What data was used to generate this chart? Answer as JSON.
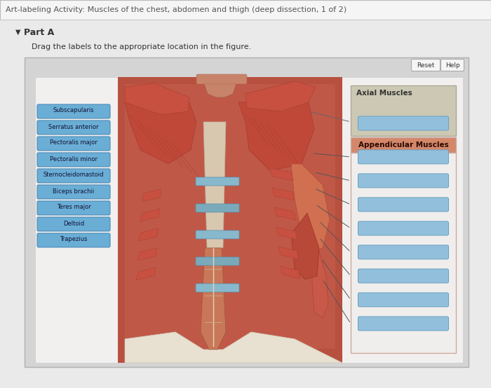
{
  "title": "Art-labeling Activity: Muscles of the chest, abdomen and thigh (deep dissection, 1 of 2)",
  "part_label": "Part A",
  "instruction": "Drag the labels to the appropriate location in the figure.",
  "page_bg": "#eaeaea",
  "title_bg": "#f5f5f5",
  "content_bg": "#d4d4d4",
  "inner_panel_bg": "#f0eeec",
  "left_labels": [
    "Subscapularis",
    "Serratus anterior",
    "Pectoralis major",
    "Pectoralis minor",
    "Sternocleidomastoid",
    "Biceps brachii",
    "Teres major",
    "Deltoid",
    "Trapezius"
  ],
  "label_btn_color": "#6aaed6",
  "label_btn_edge": "#4a8ab8",
  "label_text_color": "#111133",
  "axial_section_color": "#ccc8b4",
  "axial_section_edge": "#aaa898",
  "axial_title": "Axial Muscles",
  "appendicular_title": "Appendicular Muscles",
  "appendicular_header_color": "#d4876a",
  "appendicular_body_color": "#f0eeec",
  "appendicular_section_edge": "#ccaaa0",
  "answer_btn_color": "#92c0dc",
  "answer_btn_edge": "#6aa0c0",
  "num_axial_blanks": 1,
  "num_appendicular_blanks": 8,
  "reset_btn": "Reset",
  "help_btn": "Help",
  "anatomy_bg": "#c8786a",
  "anatomy_muscle_red": "#cc5048",
  "anatomy_skin": "#d09070",
  "anatomy_orange": "#d47858"
}
